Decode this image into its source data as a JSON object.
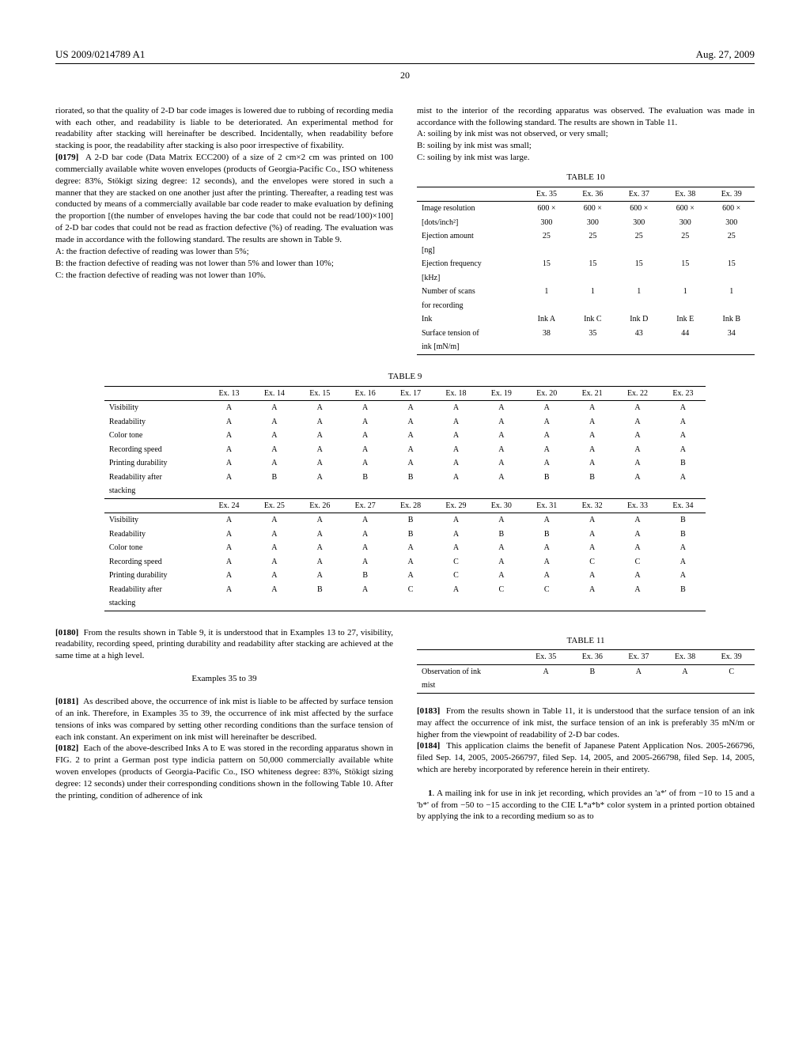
{
  "header": {
    "left": "US 2009/0214789 A1",
    "right": "Aug. 27, 2009"
  },
  "page_number": "20",
  "left_col": {
    "p1": "riorated, so that the quality of 2-D bar code images is lowered due to rubbing of recording media with each other, and readability is liable to be deteriorated. An experimental method for readability after stacking will hereinafter be described. Incidentally, when readability before stacking is poor, the readability after stacking is also poor irrespective of fixability.",
    "p2_num": "[0179]",
    "p2": "A 2-D bar code (Data Matrix ECC200) of a size of 2 cm×2 cm was printed on 100 commercially available white woven envelopes (products of Georgia-Pacific Co., ISO whiteness degree: 83%, Stökigt sizing degree: 12 seconds), and the envelopes were stored in such a manner that they are stacked on one another just after the printing. Thereafter, a reading test was conducted by means of a commercially available bar code reader to make evaluation by defining the proportion [(the number of envelopes having the bar code that could not be read/100)×100] of 2-D bar codes that could not be read as fraction defective (%) of reading. The evaluation was made in accordance with the following standard. The results are shown in Table 9.",
    "a": "A: the fraction defective of reading was lower than 5%;",
    "b": "B: the fraction defective of reading was not lower than 5% and lower than 10%;",
    "c": "C: the fraction defective of reading was not lower than 10%."
  },
  "right_col": {
    "p1": "mist to the interior of the recording apparatus was observed. The evaluation was made in accordance with the following standard. The results are shown in Table 11.",
    "a": "A: soiling by ink mist was not observed, or very small;",
    "b": "B: soiling by ink mist was small;",
    "c": "C: soiling by ink mist was large."
  },
  "table10": {
    "caption": "TABLE 10",
    "cols": [
      "",
      "Ex. 35",
      "Ex. 36",
      "Ex. 37",
      "Ex. 38",
      "Ex. 39"
    ],
    "rows": [
      [
        "Image resolution",
        "600 ×",
        "600 ×",
        "600 ×",
        "600 ×",
        "600 ×"
      ],
      [
        "[dots/inch²]",
        "300",
        "300",
        "300",
        "300",
        "300"
      ],
      [
        "Ejection amount",
        "25",
        "25",
        "25",
        "25",
        "25"
      ],
      [
        "[ng]",
        "",
        "",
        "",
        "",
        ""
      ],
      [
        "Ejection frequency",
        "15",
        "15",
        "15",
        "15",
        "15"
      ],
      [
        "[kHz]",
        "",
        "",
        "",
        "",
        ""
      ],
      [
        "Number of scans",
        "1",
        "1",
        "1",
        "1",
        "1"
      ],
      [
        "for recording",
        "",
        "",
        "",
        "",
        ""
      ],
      [
        "Ink",
        "Ink A",
        "Ink C",
        "Ink D",
        "Ink E",
        "Ink B"
      ],
      [
        "Surface tension of",
        "38",
        "35",
        "43",
        "44",
        "34"
      ],
      [
        "ink [mN/m]",
        "",
        "",
        "",
        "",
        ""
      ]
    ]
  },
  "table9": {
    "caption": "TABLE 9",
    "cols1": [
      "",
      "Ex. 13",
      "Ex. 14",
      "Ex. 15",
      "Ex. 16",
      "Ex. 17",
      "Ex. 18",
      "Ex. 19",
      "Ex. 20",
      "Ex. 21",
      "Ex. 22",
      "Ex. 23"
    ],
    "rows1": [
      [
        "Visibility",
        "A",
        "A",
        "A",
        "A",
        "A",
        "A",
        "A",
        "A",
        "A",
        "A",
        "A"
      ],
      [
        "Readability",
        "A",
        "A",
        "A",
        "A",
        "A",
        "A",
        "A",
        "A",
        "A",
        "A",
        "A"
      ],
      [
        "Color tone",
        "A",
        "A",
        "A",
        "A",
        "A",
        "A",
        "A",
        "A",
        "A",
        "A",
        "A"
      ],
      [
        "Recording speed",
        "A",
        "A",
        "A",
        "A",
        "A",
        "A",
        "A",
        "A",
        "A",
        "A",
        "A"
      ],
      [
        "Printing durability",
        "A",
        "A",
        "A",
        "A",
        "A",
        "A",
        "A",
        "A",
        "A",
        "A",
        "B"
      ],
      [
        "Readability after",
        "A",
        "B",
        "A",
        "B",
        "B",
        "A",
        "A",
        "B",
        "B",
        "A",
        "A"
      ],
      [
        "stacking",
        "",
        "",
        "",
        "",
        "",
        "",
        "",
        "",
        "",
        "",
        ""
      ]
    ],
    "cols2": [
      "",
      "Ex. 24",
      "Ex. 25",
      "Ex. 26",
      "Ex. 27",
      "Ex. 28",
      "Ex. 29",
      "Ex. 30",
      "Ex. 31",
      "Ex. 32",
      "Ex. 33",
      "Ex. 34"
    ],
    "rows2": [
      [
        "Visibility",
        "A",
        "A",
        "A",
        "A",
        "B",
        "A",
        "A",
        "A",
        "A",
        "A",
        "B"
      ],
      [
        "Readability",
        "A",
        "A",
        "A",
        "A",
        "B",
        "A",
        "B",
        "B",
        "A",
        "A",
        "B"
      ],
      [
        "Color tone",
        "A",
        "A",
        "A",
        "A",
        "A",
        "A",
        "A",
        "A",
        "A",
        "A",
        "A"
      ],
      [
        "Recording speed",
        "A",
        "A",
        "A",
        "A",
        "A",
        "C",
        "A",
        "A",
        "C",
        "C",
        "A"
      ],
      [
        "Printing durability",
        "A",
        "A",
        "A",
        "B",
        "A",
        "C",
        "A",
        "A",
        "A",
        "A",
        "A"
      ],
      [
        "Readability after",
        "A",
        "A",
        "B",
        "A",
        "C",
        "A",
        "C",
        "C",
        "A",
        "A",
        "B"
      ],
      [
        "stacking",
        "",
        "",
        "",
        "",
        "",
        "",
        "",
        "",
        "",
        "",
        ""
      ]
    ]
  },
  "lower_left": {
    "p180_num": "[0180]",
    "p180": "From the results shown in Table 9, it is understood that in Examples 13 to 27, visibility, readability, recording speed, printing durability and readability after stacking are achieved at the same time at a high level.",
    "heading": "Examples 35 to 39",
    "p181_num": "[0181]",
    "p181": "As described above, the occurrence of ink mist is liable to be affected by surface tension of an ink. Therefore, in Examples 35 to 39, the occurrence of ink mist affected by the surface tensions of inks was compared by setting other recording conditions than the surface tension of each ink constant. An experiment on ink mist will hereinafter be described.",
    "p182_num": "[0182]",
    "p182": "Each of the above-described Inks A to E was stored in the recording apparatus shown in FIG. 2 to print a German post type indicia pattern on 50,000 commercially available white woven envelopes (products of Georgia-Pacific Co., ISO whiteness degree: 83%, Stökigt sizing degree: 12 seconds) under their corresponding conditions shown in the following Table 10. After the printing, condition of adherence of ink"
  },
  "table11": {
    "caption": "TABLE 11",
    "cols": [
      "",
      "Ex. 35",
      "Ex. 36",
      "Ex. 37",
      "Ex. 38",
      "Ex. 39"
    ],
    "rows": [
      [
        "Observation of ink",
        "A",
        "B",
        "A",
        "A",
        "C"
      ],
      [
        "mist",
        "",
        "",
        "",
        "",
        ""
      ]
    ]
  },
  "lower_right": {
    "p183_num": "[0183]",
    "p183": "From the results shown in Table 11, it is understood that the surface tension of an ink may affect the occurrence of ink mist, the surface tension of an ink is preferably 35 mN/m or higher from the viewpoint of readability of 2-D bar codes.",
    "p184_num": "[0184]",
    "p184": "This application claims the benefit of Japanese Patent Application Nos. 2005-266796, filed Sep. 14, 2005, 2005-266797, filed Sep. 14, 2005, and 2005-266798, filed Sep. 14, 2005, which are hereby incorporated by reference herein in their entirety.",
    "claim1_num": "1",
    "claim1": ". A mailing ink for use in ink jet recording, which provides an 'a*' of from −10 to 15 and a 'b*' of from −50 to −15 according to the CIE L*a*b* color system in a printed portion obtained by applying the ink to a recording medium so as to"
  }
}
